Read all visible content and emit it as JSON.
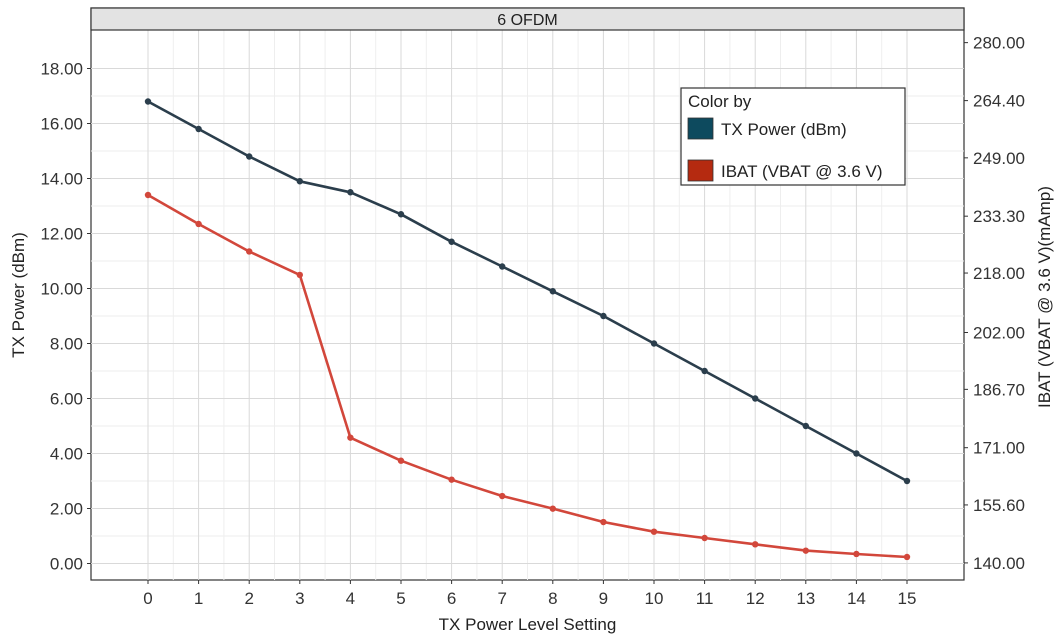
{
  "chart_data": {
    "type": "line",
    "title": "6 OFDM",
    "xlabel": "TX Power Level Setting",
    "ylabel": "TX Power (dBm)",
    "y2label": "IBAT (VBAT @ 3.6 V)(mAmp)",
    "categories": [
      0,
      1,
      2,
      3,
      4,
      5,
      6,
      7,
      8,
      9,
      10,
      11,
      12,
      13,
      14,
      15
    ],
    "x_ticks": [
      "0",
      "1",
      "2",
      "3",
      "4",
      "5",
      "6",
      "7",
      "8",
      "9",
      "10",
      "11",
      "12",
      "13",
      "14",
      "15"
    ],
    "ylim": [
      -0.6,
      19.4
    ],
    "y_ticks": [
      0,
      2,
      4,
      6,
      8,
      10,
      12,
      14,
      16,
      18
    ],
    "y_tick_labels": [
      "0.00",
      "2.00",
      "4.00",
      "6.00",
      "8.00",
      "10.00",
      "12.00",
      "14.00",
      "16.00",
      "18.00"
    ],
    "y2lim": [
      135.4,
      283.4
    ],
    "y2_ticks": [
      140.0,
      155.6,
      171.0,
      186.7,
      202.0,
      218.0,
      233.3,
      249.0,
      264.4,
      280.0
    ],
    "y2_tick_labels": [
      "140.00",
      "155.60",
      "171.00",
      "186.70",
      "202.00",
      "218.00",
      "233.30",
      "249.00",
      "264.40",
      "280.00"
    ],
    "grid": true,
    "legend": {
      "title": "Color by",
      "placement": "top-right"
    },
    "series": [
      {
        "name": "TX Power (dBm)",
        "axis": "left",
        "color": "#2b3e4c",
        "swatch_color": "#0d4a5e",
        "values": [
          16.8,
          15.8,
          14.8,
          13.9,
          13.5,
          12.7,
          11.7,
          10.8,
          9.9,
          9.0,
          8.0,
          7.0,
          6.0,
          5.0,
          4.0,
          3.0
        ]
      },
      {
        "name": "IBAT (VBAT @ 3.6 V)",
        "axis": "right",
        "color": "#d2473b",
        "swatch_color": "#b52a10",
        "values": [
          239.0,
          231.2,
          223.8,
          217.5,
          173.7,
          167.5,
          162.4,
          158.0,
          154.6,
          151.0,
          148.4,
          146.7,
          145.0,
          143.3,
          142.4,
          141.6
        ]
      }
    ]
  }
}
